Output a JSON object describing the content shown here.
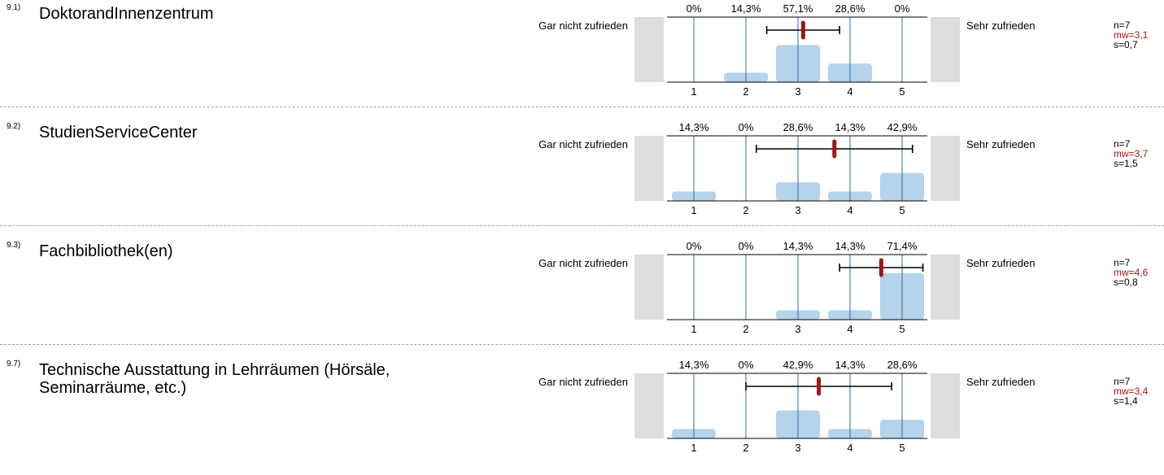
{
  "questions": [
    {
      "number": "9.1)",
      "text": "DoktorandInnenzentrum",
      "left_label": "Gar nicht zufrieden",
      "right_label": "Sehr zufrieden",
      "percent_labels": [
        "0%",
        "14,3%",
        "57,1%",
        "28,6%",
        "0%"
      ],
      "stats": {
        "n": "n=7",
        "mw": "mw=3,1",
        "s": "s=0,7"
      },
      "chart_data": {
        "type": "bar",
        "categories": [
          "1",
          "2",
          "3",
          "4",
          "5"
        ],
        "values": [
          0,
          14.3,
          57.1,
          28.6,
          0
        ],
        "mean": 3.1,
        "sd": 0.7,
        "whisker_range": [
          2.4,
          3.8
        ]
      }
    },
    {
      "number": "9.2)",
      "text": "StudienServiceCenter",
      "left_label": "Gar nicht zufrieden",
      "right_label": "Sehr zufrieden",
      "percent_labels": [
        "14,3%",
        "0%",
        "28,6%",
        "14,3%",
        "42,9%"
      ],
      "stats": {
        "n": "n=7",
        "mw": "mw=3,7",
        "s": "s=1,5"
      },
      "chart_data": {
        "type": "bar",
        "categories": [
          "1",
          "2",
          "3",
          "4",
          "5"
        ],
        "values": [
          14.3,
          0,
          28.6,
          14.3,
          42.9
        ],
        "mean": 3.7,
        "sd": 1.5,
        "whisker_range": [
          2.2,
          5.2
        ]
      }
    },
    {
      "number": "9.3)",
      "text": "Fachbibliothek(en)",
      "left_label": "Gar nicht zufrieden",
      "right_label": "Sehr zufrieden",
      "percent_labels": [
        "0%",
        "0%",
        "14,3%",
        "14,3%",
        "71,4%"
      ],
      "stats": {
        "n": "n=7",
        "mw": "mw=4,6",
        "s": "s=0,8"
      },
      "chart_data": {
        "type": "bar",
        "categories": [
          "1",
          "2",
          "3",
          "4",
          "5"
        ],
        "values": [
          0,
          0,
          14.3,
          14.3,
          71.4
        ],
        "mean": 4.6,
        "sd": 0.8,
        "whisker_range": [
          3.8,
          5.4
        ]
      }
    },
    {
      "number": "9.7)",
      "text": "Technische Ausstattung in Lehrräumen (Hörsäle, Seminarräume, etc.)",
      "left_label": "Gar nicht zufrieden",
      "right_label": "Sehr zufrieden",
      "percent_labels": [
        "14,3%",
        "0%",
        "42,9%",
        "14,3%",
        "28,6%"
      ],
      "stats": {
        "n": "n=7",
        "mw": "mw=3,4",
        "s": "s=1,4"
      },
      "chart_data": {
        "type": "bar",
        "categories": [
          "1",
          "2",
          "3",
          "4",
          "5"
        ],
        "values": [
          14.3,
          0,
          42.9,
          14.3,
          28.6
        ],
        "mean": 3.4,
        "sd": 1.4,
        "whisker_range": [
          2.0,
          4.8
        ]
      }
    }
  ],
  "colors": {
    "bar": "#b5d3ea",
    "gridline": "#2b6cb0",
    "mean_marker": "#a31515",
    "side_box": "#dddddd",
    "whisker": "#000000"
  }
}
